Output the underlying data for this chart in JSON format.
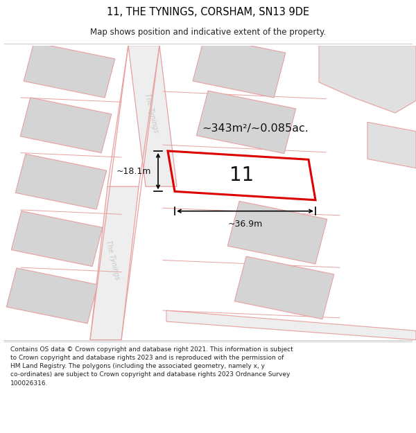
{
  "title": "11, THE TYNINGS, CORSHAM, SN13 9DE",
  "subtitle": "Map shows position and indicative extent of the property.",
  "footer_line1": "Contains OS data © Crown copyright and database right 2021. This information is subject",
  "footer_line2": "to Crown copyright and database rights 2023 and is reproduced with the permission of",
  "footer_line3": "HM Land Registry. The polygons (including the associated geometry, namely x, y",
  "footer_line4": "co-ordinates) are subject to Crown copyright and database rights 2023 Ordnance Survey",
  "footer_line5": "100026316.",
  "bg_color": "#ffffff",
  "road_line_color": "#e8a0a0",
  "plot_line_color": "#dd0000",
  "block_fill": "#d4d4d4",
  "block_edge": "#e8a0a0",
  "road_fill": "#eeeeee",
  "area_label": "~343m²/~0.085ac.",
  "number_label": "11",
  "dim_width": "~36.9m",
  "dim_height": "~18.1m",
  "street_label": "The Tynings",
  "street_color": "#c8c8c8"
}
